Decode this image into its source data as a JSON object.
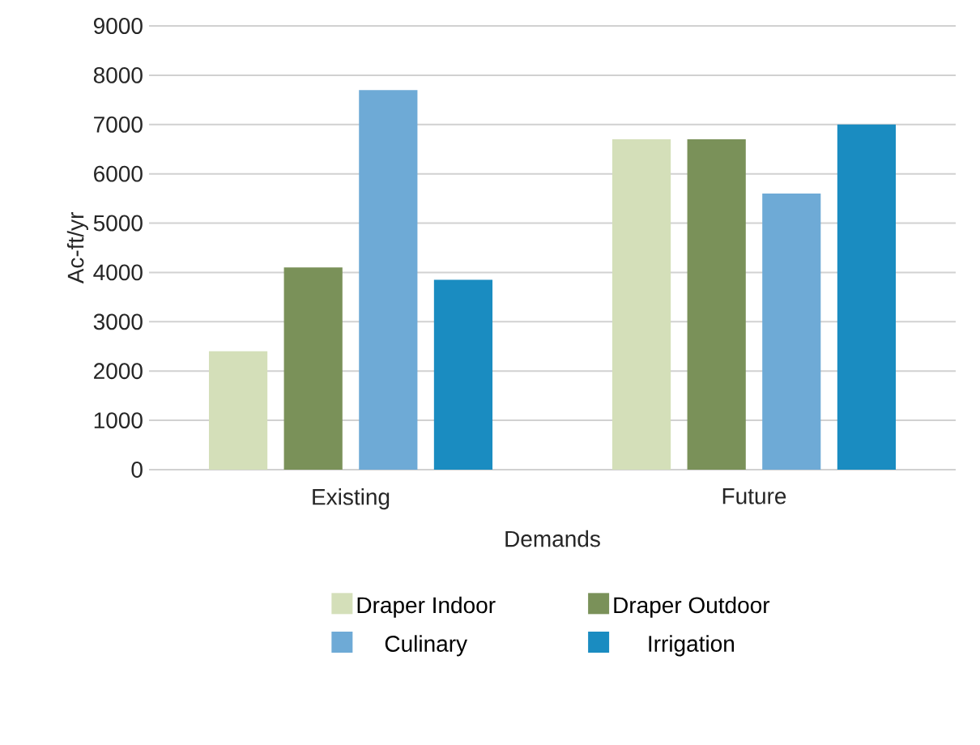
{
  "chart_data": {
    "type": "bar",
    "xlabel": "Demands",
    "ylabel": "Ac-ft/yr",
    "categories": [
      "Existing",
      "Future"
    ],
    "series": [
      {
        "name": "Draper Indoor",
        "color": "#d4dfb9",
        "values": [
          2400,
          6700
        ]
      },
      {
        "name": "Draper Outdoor",
        "color": "#7a9159",
        "values": [
          4100,
          6700
        ]
      },
      {
        "name": "Culinary",
        "color": "#6eaad6",
        "values": [
          7700,
          5600
        ]
      },
      {
        "name": "Irrigation",
        "color": "#1a8cc1",
        "values": [
          3850,
          7000
        ]
      }
    ],
    "ylim": [
      0,
      9000
    ],
    "yticks": [
      0,
      1000,
      2000,
      3000,
      4000,
      5000,
      6000,
      7000,
      8000,
      9000
    ],
    "grid": "y",
    "legend": "bottom"
  }
}
